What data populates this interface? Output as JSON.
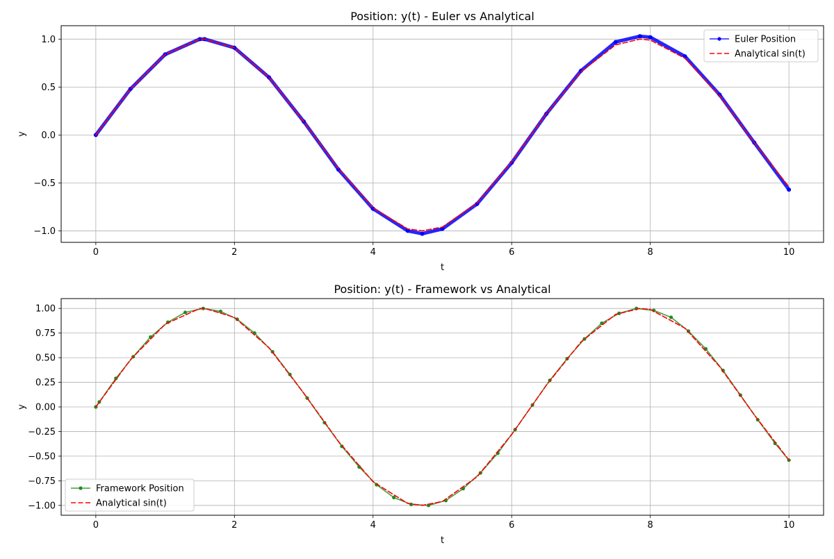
{
  "chart_data": [
    {
      "type": "line",
      "title": "Position: y(t) - Euler vs Analytical",
      "xlabel": "t",
      "ylabel": "y",
      "xlim": [
        -0.5,
        10.5
      ],
      "ylim": [
        -1.12,
        1.14
      ],
      "xticks": [
        0,
        2,
        4,
        6,
        8,
        10
      ],
      "xtick_labels": [
        "0",
        "2",
        "4",
        "6",
        "8",
        "10"
      ],
      "yticks": [
        -1.0,
        -0.5,
        0.0,
        0.5,
        1.0
      ],
      "ytick_labels": [
        "−1.0",
        "−0.5",
        "0.0",
        "0.5",
        "1.0"
      ],
      "grid": true,
      "legend_position": "upper right",
      "series": [
        {
          "name": "Euler Position",
          "style": "line-with-markers",
          "color": "#0000ff",
          "x": [
            0,
            0.5,
            1.0,
            1.5,
            1.57,
            2.0,
            2.5,
            3.0,
            3.5,
            4.0,
            4.5,
            4.71,
            5.0,
            5.5,
            6.0,
            6.5,
            7.0,
            7.5,
            7.85,
            8.0,
            8.5,
            9.0,
            9.5,
            10.0
          ],
          "values": [
            0.0,
            0.48,
            0.84,
            1.0,
            1.0,
            0.91,
            0.6,
            0.14,
            -0.36,
            -0.77,
            -1.0,
            -1.03,
            -0.98,
            -0.72,
            -0.29,
            0.22,
            0.67,
            0.97,
            1.03,
            1.02,
            0.82,
            0.42,
            -0.08,
            -0.57
          ]
        },
        {
          "name": "Analytical sin(t)",
          "style": "dashed",
          "color": "#ff0000",
          "x": [
            0,
            0.5,
            1.0,
            1.5,
            1.57,
            2.0,
            2.5,
            3.0,
            3.5,
            4.0,
            4.5,
            4.71,
            5.0,
            5.5,
            6.0,
            6.5,
            7.0,
            7.5,
            7.85,
            8.0,
            8.5,
            9.0,
            9.5,
            10.0
          ],
          "values": [
            0.0,
            0.48,
            0.84,
            1.0,
            1.0,
            0.91,
            0.6,
            0.14,
            -0.35,
            -0.76,
            -0.98,
            -1.0,
            -0.96,
            -0.71,
            -0.28,
            0.22,
            0.66,
            0.94,
            1.0,
            0.99,
            0.8,
            0.41,
            -0.08,
            -0.54
          ]
        }
      ]
    },
    {
      "type": "line",
      "title": "Position: y(t) - Framework vs Analytical",
      "xlabel": "t",
      "ylabel": "y",
      "xlim": [
        -0.5,
        10.5
      ],
      "ylim": [
        -1.1,
        1.1
      ],
      "xticks": [
        0,
        2,
        4,
        6,
        8,
        10
      ],
      "xtick_labels": [
        "0",
        "2",
        "4",
        "6",
        "8",
        "10"
      ],
      "yticks": [
        -1.0,
        -0.75,
        -0.5,
        -0.25,
        0.0,
        0.25,
        0.5,
        0.75,
        1.0
      ],
      "ytick_labels": [
        "−1.00",
        "−0.75",
        "−0.50",
        "−0.25",
        "0.00",
        "0.25",
        "0.50",
        "0.75",
        "1.00"
      ],
      "grid": true,
      "legend_position": "lower left",
      "series": [
        {
          "name": "Framework Position",
          "style": "line-with-markers",
          "color": "#228b22",
          "x": [
            0,
            0.05,
            0.29,
            0.54,
            0.79,
            1.04,
            1.29,
            1.55,
            1.8,
            2.04,
            2.29,
            2.55,
            2.8,
            3.05,
            3.3,
            3.55,
            3.8,
            4.05,
            4.3,
            4.55,
            4.8,
            5.05,
            5.3,
            5.55,
            5.8,
            6.05,
            6.3,
            6.55,
            6.8,
            7.05,
            7.3,
            7.55,
            7.8,
            8.05,
            8.3,
            8.55,
            8.8,
            9.05,
            9.3,
            9.55,
            9.8,
            10.0
          ],
          "values": [
            0.0,
            0.05,
            0.29,
            0.51,
            0.71,
            0.86,
            0.96,
            1.0,
            0.97,
            0.89,
            0.75,
            0.56,
            0.33,
            0.09,
            -0.16,
            -0.4,
            -0.61,
            -0.79,
            -0.92,
            -0.99,
            -1.0,
            -0.95,
            -0.83,
            -0.67,
            -0.47,
            -0.23,
            0.02,
            0.27,
            0.49,
            0.69,
            0.85,
            0.95,
            1.0,
            0.98,
            0.91,
            0.77,
            0.59,
            0.37,
            0.12,
            -0.13,
            -0.37,
            -0.54
          ]
        },
        {
          "name": "Analytical sin(t)",
          "style": "dashed",
          "color": "#ff0000",
          "x": [
            0,
            0.5,
            1.0,
            1.5,
            1.57,
            2.0,
            2.5,
            3.0,
            3.5,
            4.0,
            4.5,
            4.71,
            5.0,
            5.5,
            6.0,
            6.5,
            7.0,
            7.5,
            7.85,
            8.0,
            8.5,
            9.0,
            9.5,
            10.0
          ],
          "values": [
            0.0,
            0.48,
            0.84,
            1.0,
            1.0,
            0.91,
            0.6,
            0.14,
            -0.35,
            -0.76,
            -0.98,
            -1.0,
            -0.96,
            -0.71,
            -0.28,
            0.22,
            0.66,
            0.94,
            1.0,
            0.99,
            0.8,
            0.41,
            -0.08,
            -0.54
          ]
        }
      ]
    }
  ]
}
